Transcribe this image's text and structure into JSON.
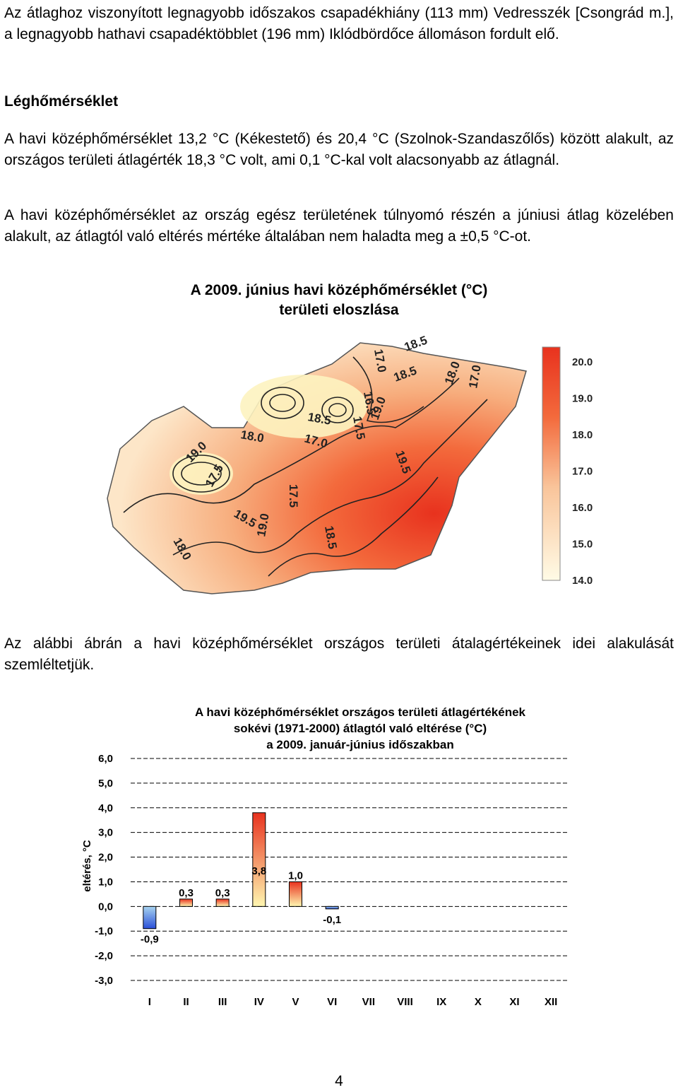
{
  "intro": {
    "text": "Az átlaghoz viszonyított legnagyobb időszakos csapadékhiány (113 mm) Vedresszék [Csongrád m.], a legnagyobb hathavi csapadéktöbblet (196 mm) Iklódbördőce állomáson fordult elő."
  },
  "section": {
    "heading": "Léghőmérséklet",
    "para1": "A havi középhőmérséklet 13,2 °C (Kékestető) és 20,4 °C (Szolnok-Szandaszőlős) között alakult, az országos területi átlagérték 18,3 °C volt, ami 0,1 °C-kal volt alacsonyabb az átlagnál.",
    "para2": "A havi középhőmérséklet az ország egész területének túlnyomó részén a júniusi átlag közelében alakult, az átlagtól való eltérés mértéke általában nem haladta meg a ±0,5 °C-ot."
  },
  "map": {
    "title_line1": "A 2009. június havi középhőmérséklet (°C)",
    "title_line2": "területi eloszlása",
    "legend": [
      "20.0",
      "19.0",
      "18.0",
      "17.0",
      "16.0",
      "15.0",
      "14.0"
    ],
    "contour_labels": [
      "17.0",
      "18.5",
      "16.5",
      "17.5",
      "19.0",
      "18.5",
      "18.0",
      "17.0",
      "18.0",
      "18.5",
      "17.0",
      "17.5",
      "19.5",
      "19.0",
      "17.5",
      "18.5",
      "19.5",
      "18.0",
      "19.0"
    ],
    "colors": {
      "warm": "#e8321e",
      "mid": "#f5a070",
      "cool": "#fdf3c0",
      "pale": "#fffbe6"
    }
  },
  "after_map": {
    "text": "Az alábbi ábrán a havi középhőmérséklet országos területi átalagértékeinek idei alakulását szemléltetjük."
  },
  "chart_data": {
    "type": "bar",
    "title_lines": [
      "A havi középhőmérséklet országos területi átlagértékének",
      "sokévi (1971-2000) átlagtól való eltérése (°C)",
      "a 2009. január-június időszakban"
    ],
    "ylabel": "eltérés, °C",
    "xlabel": "",
    "ylim": [
      -3,
      6
    ],
    "yticks": [
      "6,0",
      "5,0",
      "4,0",
      "3,0",
      "2,0",
      "1,0",
      "0,0",
      "-1,0",
      "-2,0",
      "-3,0"
    ],
    "categories": [
      "I",
      "II",
      "III",
      "IV",
      "V",
      "VI",
      "VII",
      "VIII",
      "IX",
      "X",
      "XI",
      "XII"
    ],
    "values": [
      -0.9,
      0.3,
      0.3,
      3.8,
      1.0,
      -0.1,
      null,
      null,
      null,
      null,
      null,
      null
    ],
    "value_labels": [
      "-0,9",
      "0,3",
      "0,3",
      "3,8",
      "1,0",
      "-0,1",
      "",
      "",
      "",
      "",
      "",
      ""
    ],
    "colors": {
      "positive_top": "#e8321e",
      "positive_bottom": "#fff6b0",
      "negative_top": "#a8d4f0",
      "negative_bottom": "#2a4fd8"
    },
    "grid": true,
    "legend": "none"
  },
  "page": {
    "number": "4"
  }
}
